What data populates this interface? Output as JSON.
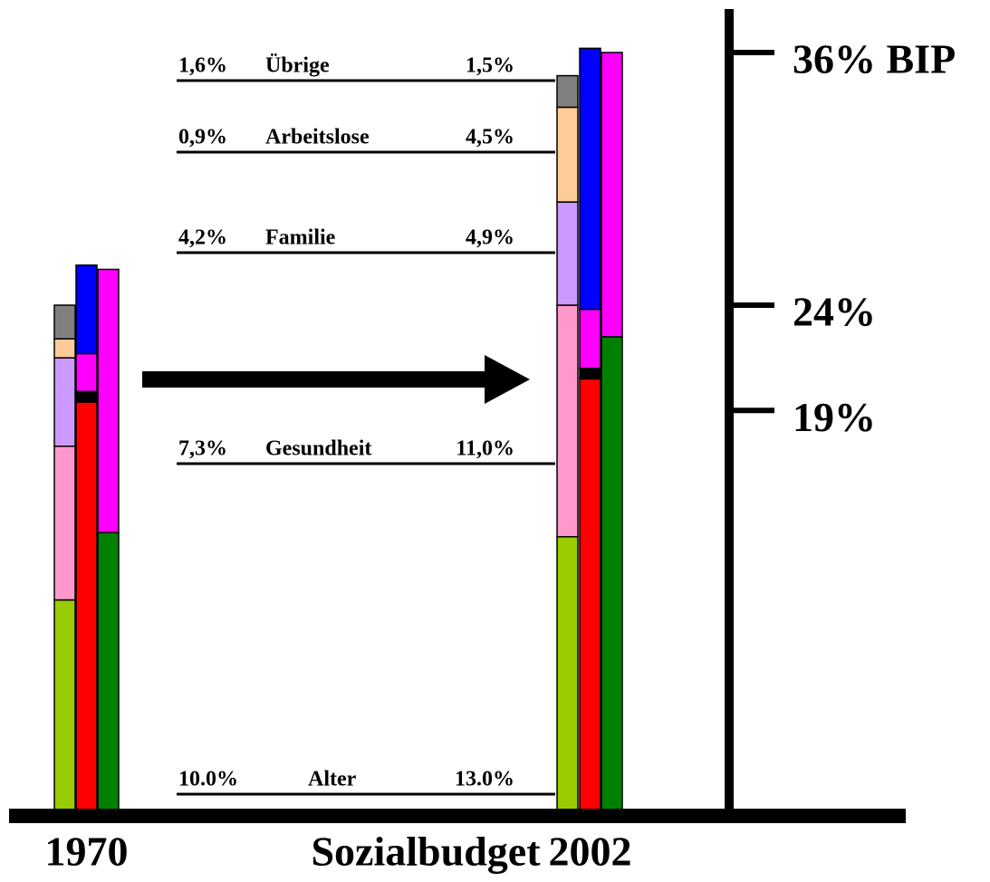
{
  "chart_data": {
    "type": "stacked_bar",
    "title": "Sozialbudget",
    "categories": [
      "1970",
      "2002"
    ],
    "series": [
      {
        "name": "Alter",
        "color": "#99cc00",
        "values": [
          10.0,
          13.0
        ],
        "value_labels": [
          "10.0%",
          "13.0%"
        ]
      },
      {
        "name": "Gesundheit",
        "color": "#ff99cc",
        "values": [
          7.3,
          11.0
        ],
        "value_labels": [
          "7,3%",
          "11,0%"
        ]
      },
      {
        "name": "Familie",
        "color": "#cc99ff",
        "values": [
          4.2,
          4.9
        ],
        "value_labels": [
          "4,2%",
          "4,9%"
        ]
      },
      {
        "name": "Arbeitslose",
        "color": "#ffcc99",
        "values": [
          0.9,
          4.5
        ],
        "value_labels": [
          "0,9%",
          "4,5%"
        ]
      },
      {
        "name": "Übrige",
        "color": "#808080",
        "values": [
          1.6,
          1.5
        ],
        "value_labels": [
          "1,6%",
          "1,5%"
        ]
      }
    ],
    "series2": [
      {
        "color": "#ff0000",
        "values": [
          19.4,
          20.5
        ]
      },
      {
        "color": "#000000",
        "values": [
          0.5,
          0.5
        ]
      },
      {
        "color": "#ff00ff",
        "values": [
          1.8,
          2.8
        ]
      },
      {
        "color": "#0000ff",
        "values": [
          4.2,
          12.4
        ]
      }
    ],
    "series3": [
      {
        "color": "#008000",
        "values": [
          13.2,
          22.5
        ]
      },
      {
        "color": "#ff00ff",
        "values": [
          12.5,
          13.5
        ]
      }
    ],
    "ylim": [
      0,
      36
    ],
    "yticks": [
      {
        "value": 36,
        "label": "36% BIP"
      },
      {
        "value": 24,
        "label": "24%"
      },
      {
        "value": 19,
        "label": "19%"
      }
    ]
  }
}
